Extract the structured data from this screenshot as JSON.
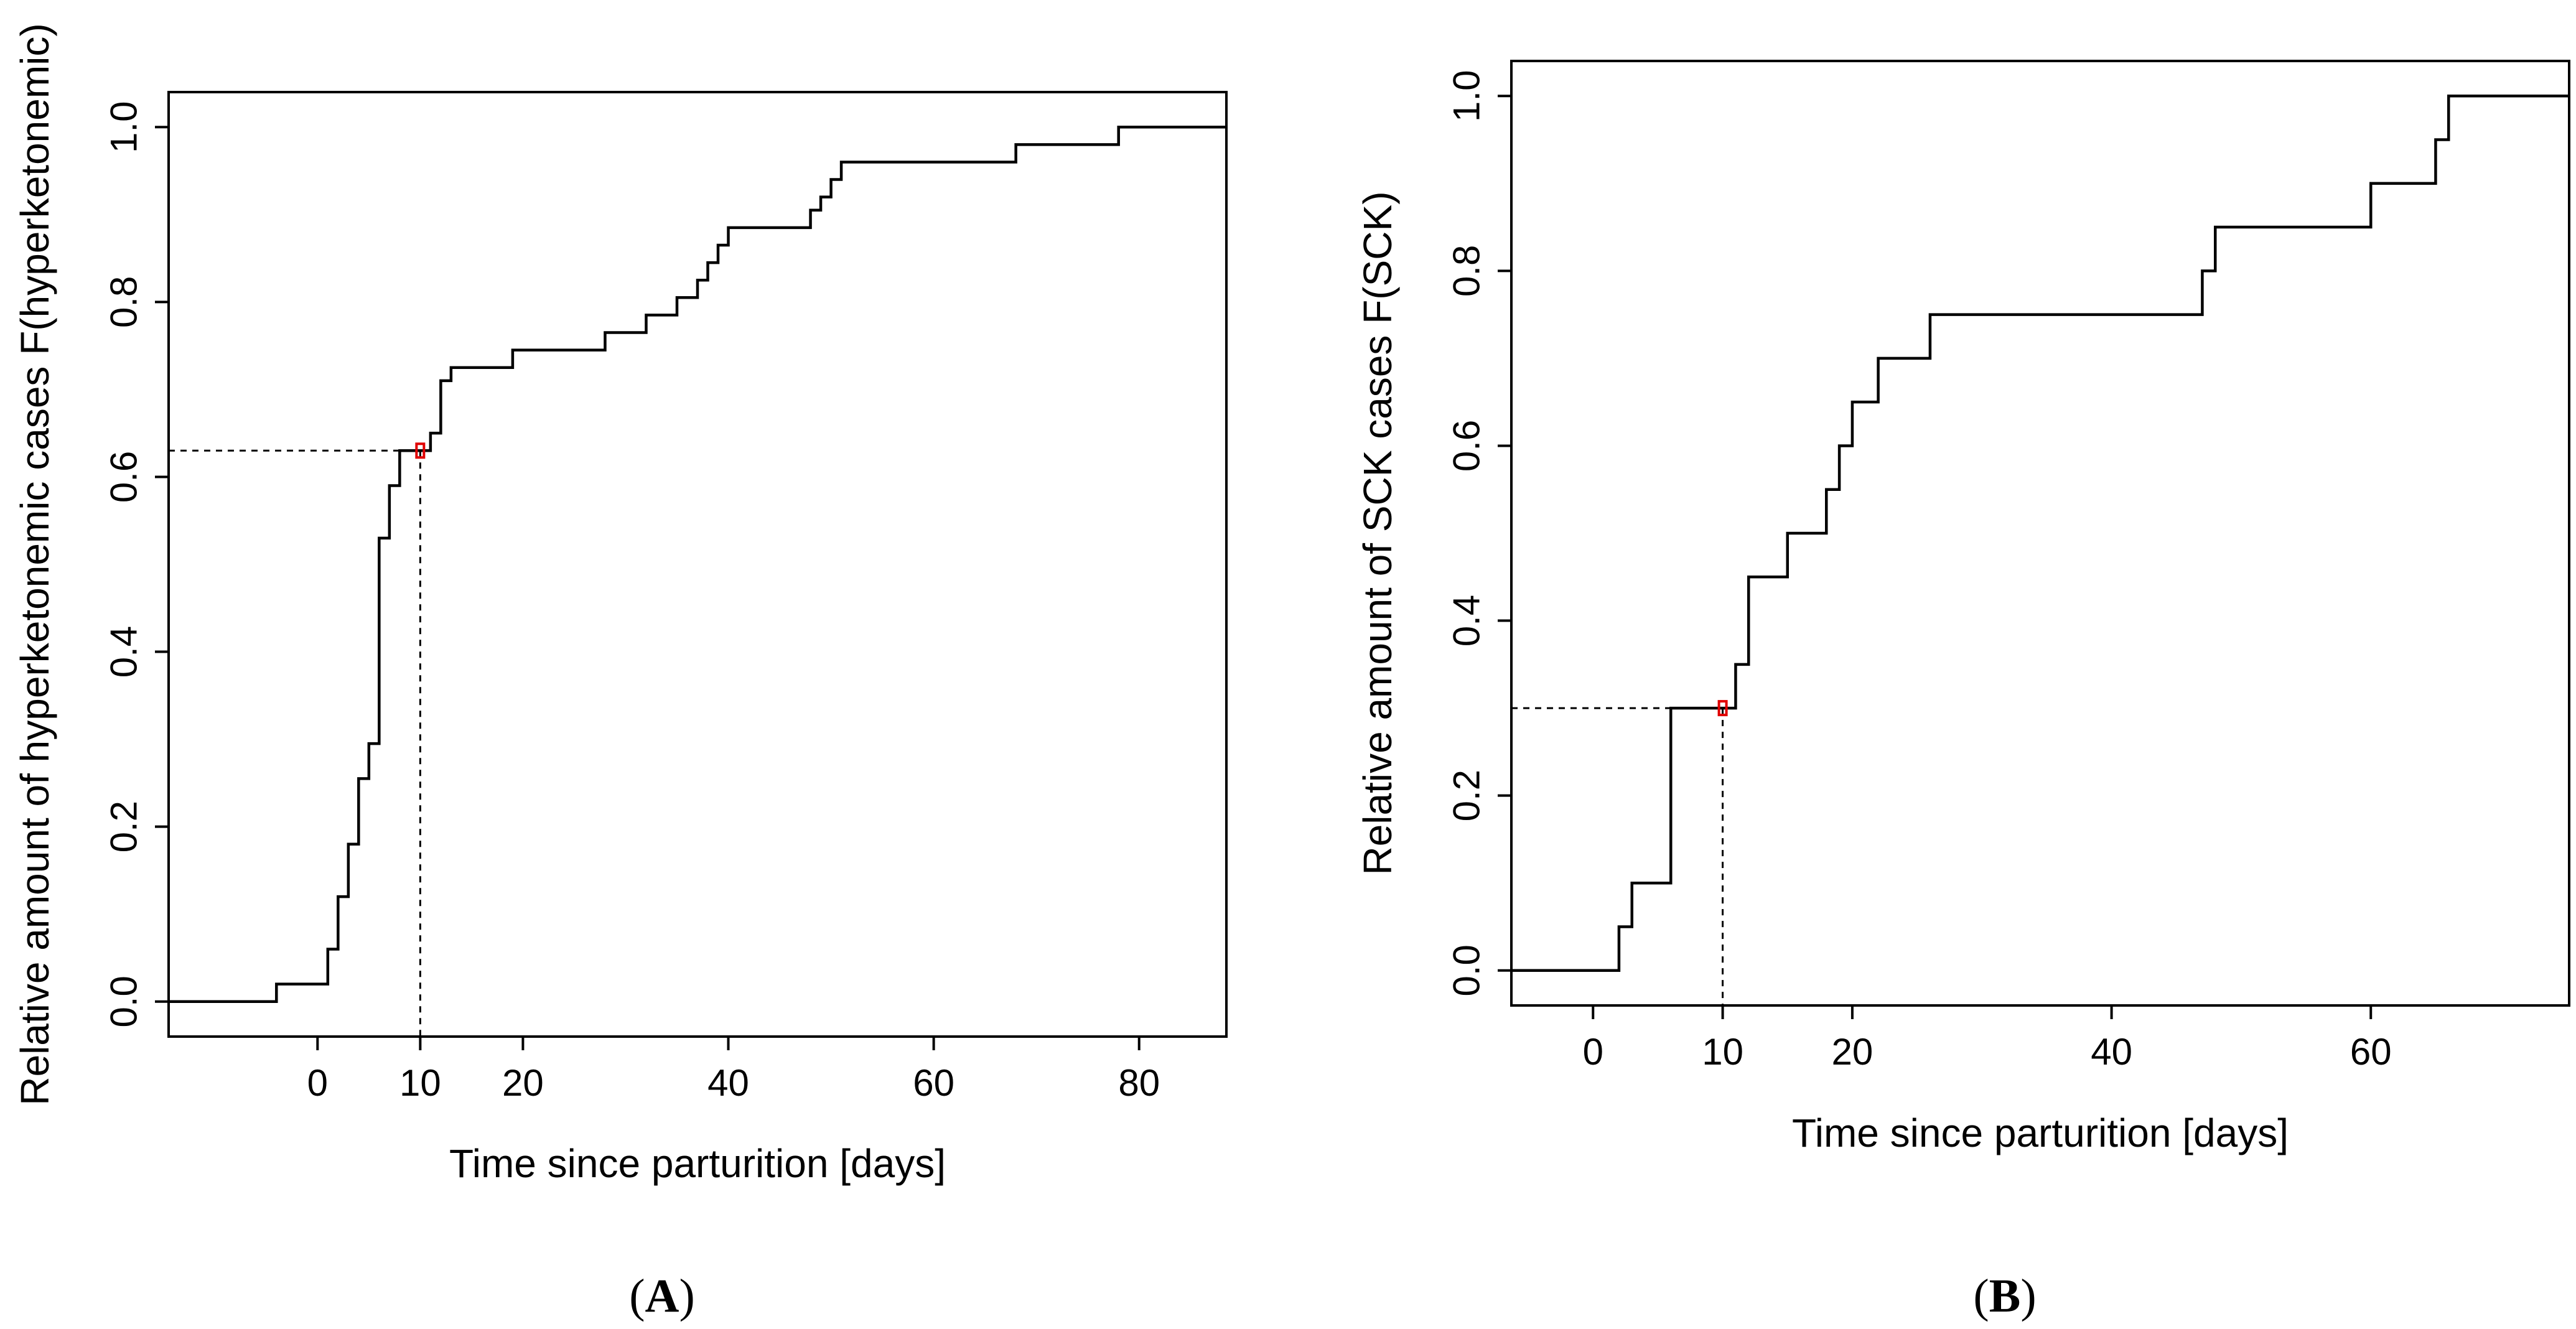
{
  "chart_data": [
    {
      "type": "line",
      "id": "A",
      "panel_label": "A",
      "panel_letter": "A",
      "panel_paren_open": "(",
      "panel_paren_close": ")",
      "xlabel": "Time since parturition [days]",
      "ylabel": "Relative amount of hyperketonemic cases F(hyperketonemic)",
      "xlim": [
        -14.5,
        88.5
      ],
      "ylim": [
        -0.04,
        1.04
      ],
      "xticks": [
        0,
        10,
        20,
        40,
        60,
        80
      ],
      "xtick_labels": [
        "0",
        "10",
        "20",
        "40",
        "60",
        "80"
      ],
      "yticks": [
        0.0,
        0.2,
        0.4,
        0.6,
        0.8,
        1.0
      ],
      "ytick_labels": [
        "0.0",
        "0.2",
        "0.4",
        "0.6",
        "0.8",
        "1.0"
      ],
      "series": [
        {
          "name": "F(hyperketonemic)",
          "x": [
            -14.5,
            -4,
            1,
            2,
            3,
            4,
            5,
            6,
            7,
            8,
            9,
            10,
            11,
            12,
            13,
            19,
            28,
            32,
            35,
            37,
            38,
            39,
            40,
            48,
            49,
            50,
            51,
            52,
            68,
            78,
            88.5
          ],
          "y": [
            0.0,
            0.02,
            0.06,
            0.12,
            0.18,
            0.255,
            0.295,
            0.53,
            0.59,
            0.63,
            0.63,
            0.63,
            0.65,
            0.71,
            0.725,
            0.745,
            0.765,
            0.785,
            0.805,
            0.825,
            0.845,
            0.865,
            0.885,
            0.905,
            0.92,
            0.94,
            0.96,
            0.96,
            0.98,
            1.0,
            1.0
          ]
        }
      ],
      "reference": {
        "x": 10,
        "y": 0.63,
        "line_style": "dashed",
        "marker_color": "#e00000"
      }
    },
    {
      "type": "line",
      "id": "B",
      "panel_label": "B",
      "panel_letter": "B",
      "panel_paren_open": "(",
      "panel_paren_close": ")",
      "xlabel": "Time since parturition [days]",
      "ylabel": "Relative amount of SCK cases F(SCK)",
      "xlim": [
        -6.3,
        75.3
      ],
      "ylim": [
        -0.04,
        1.04
      ],
      "xticks": [
        0,
        10,
        20,
        40,
        60
      ],
      "xtick_labels": [
        "0",
        "10",
        "20",
        "40",
        "60"
      ],
      "yticks": [
        0.0,
        0.2,
        0.4,
        0.6,
        0.8,
        1.0
      ],
      "ytick_labels": [
        "0.0",
        "0.2",
        "0.4",
        "0.6",
        "0.8",
        "1.0"
      ],
      "series": [
        {
          "name": "F(SCK)",
          "x": [
            -6.3,
            2,
            3,
            6,
            11,
            12,
            15,
            18,
            19,
            20,
            22,
            26,
            47,
            48,
            60,
            65,
            66,
            75.3
          ],
          "y": [
            0.0,
            0.05,
            0.1,
            0.3,
            0.35,
            0.45,
            0.5,
            0.55,
            0.6,
            0.65,
            0.7,
            0.75,
            0.8,
            0.85,
            0.9,
            0.95,
            1.0,
            1.0
          ]
        }
      ],
      "reference": {
        "x": 10,
        "y": 0.3,
        "line_style": "dashed",
        "marker_color": "#e00000"
      }
    }
  ]
}
